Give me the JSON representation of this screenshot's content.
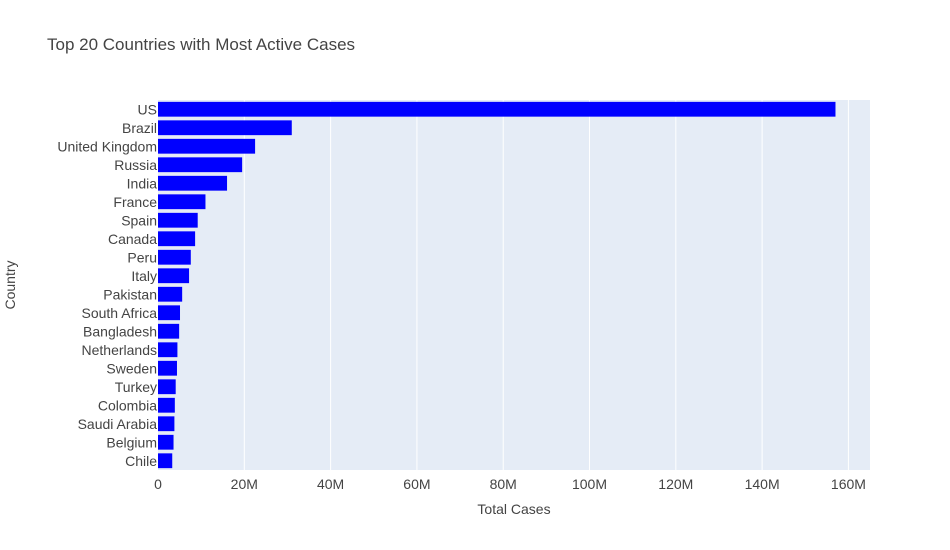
{
  "chart_data": {
    "type": "bar",
    "orientation": "horizontal",
    "title": "Top 20 Countries with Most Active Cases",
    "xlabel": "Total Cases",
    "ylabel": "Country",
    "xlim": [
      0,
      165000000
    ],
    "x_ticks": [
      0,
      20000000,
      40000000,
      60000000,
      80000000,
      100000000,
      120000000,
      140000000,
      160000000
    ],
    "x_tick_labels": [
      "0",
      "20M",
      "40M",
      "60M",
      "80M",
      "100M",
      "120M",
      "140M",
      "160M"
    ],
    "grid": true,
    "bar_color": "#0000ff",
    "plot_bg": "#e5ecf6",
    "categories": [
      "US",
      "Brazil",
      "United Kingdom",
      "Russia",
      "India",
      "France",
      "Spain",
      "Canada",
      "Peru",
      "Italy",
      "Pakistan",
      "South Africa",
      "Bangladesh",
      "Netherlands",
      "Sweden",
      "Turkey",
      "Colombia",
      "Saudi Arabia",
      "Belgium",
      "Chile"
    ],
    "values": [
      157000000,
      31000000,
      22500000,
      19500000,
      16000000,
      11000000,
      9200000,
      8600000,
      7600000,
      7200000,
      5600000,
      5100000,
      4900000,
      4500000,
      4400000,
      4100000,
      3900000,
      3800000,
      3600000,
      3300000
    ]
  }
}
